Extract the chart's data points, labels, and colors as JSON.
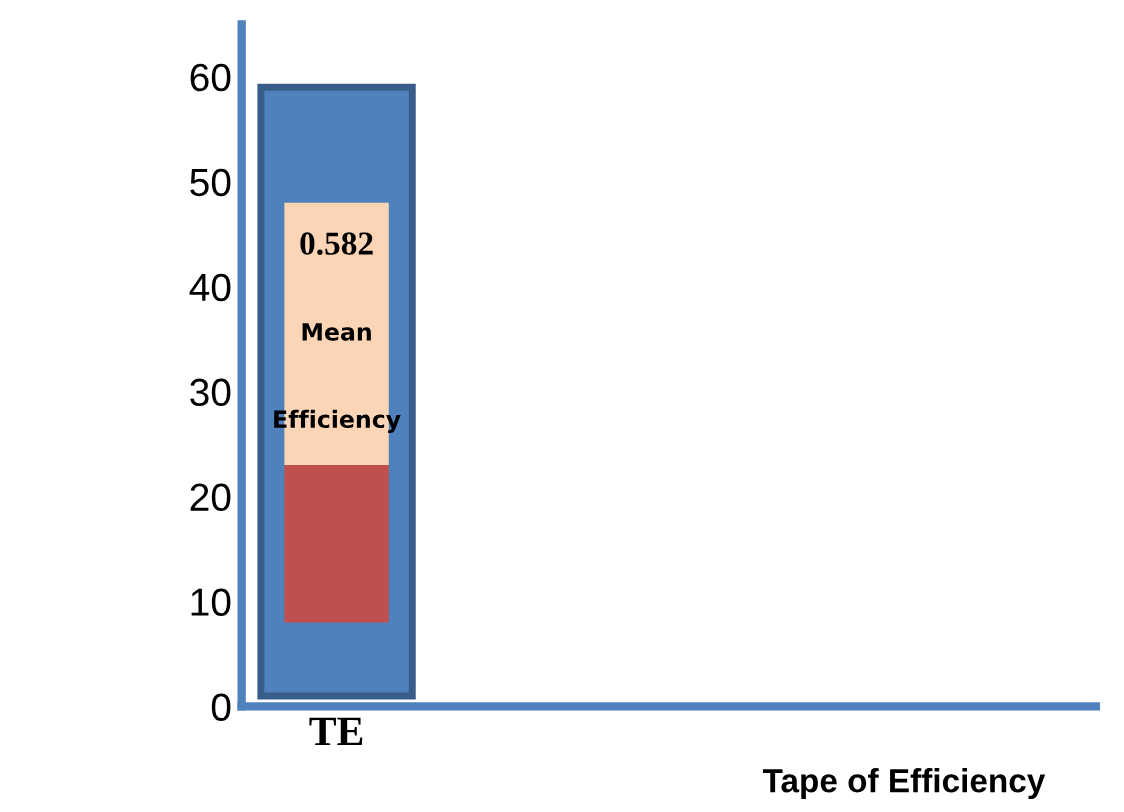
{
  "chart_data": {
    "type": "bar",
    "categories": [
      "TE"
    ],
    "series": [
      {
        "color": "#4f81bd",
        "values": [
          58
        ],
        "base": [
          1
        ]
      },
      {
        "color": "#c0504d",
        "values": [
          15
        ],
        "base": [
          8
        ]
      },
      {
        "color": "#fbd5b5",
        "values": [
          25
        ],
        "base": [
          23
        ]
      }
    ],
    "annotations": [
      "0.582",
      "Mean",
      "Efficiency",
      "Tape of Efficiency"
    ],
    "ylim": [
      0,
      65
    ],
    "yticks": [
      0,
      10,
      20,
      30,
      40,
      50,
      60
    ],
    "grid": false,
    "legend": false
  }
}
